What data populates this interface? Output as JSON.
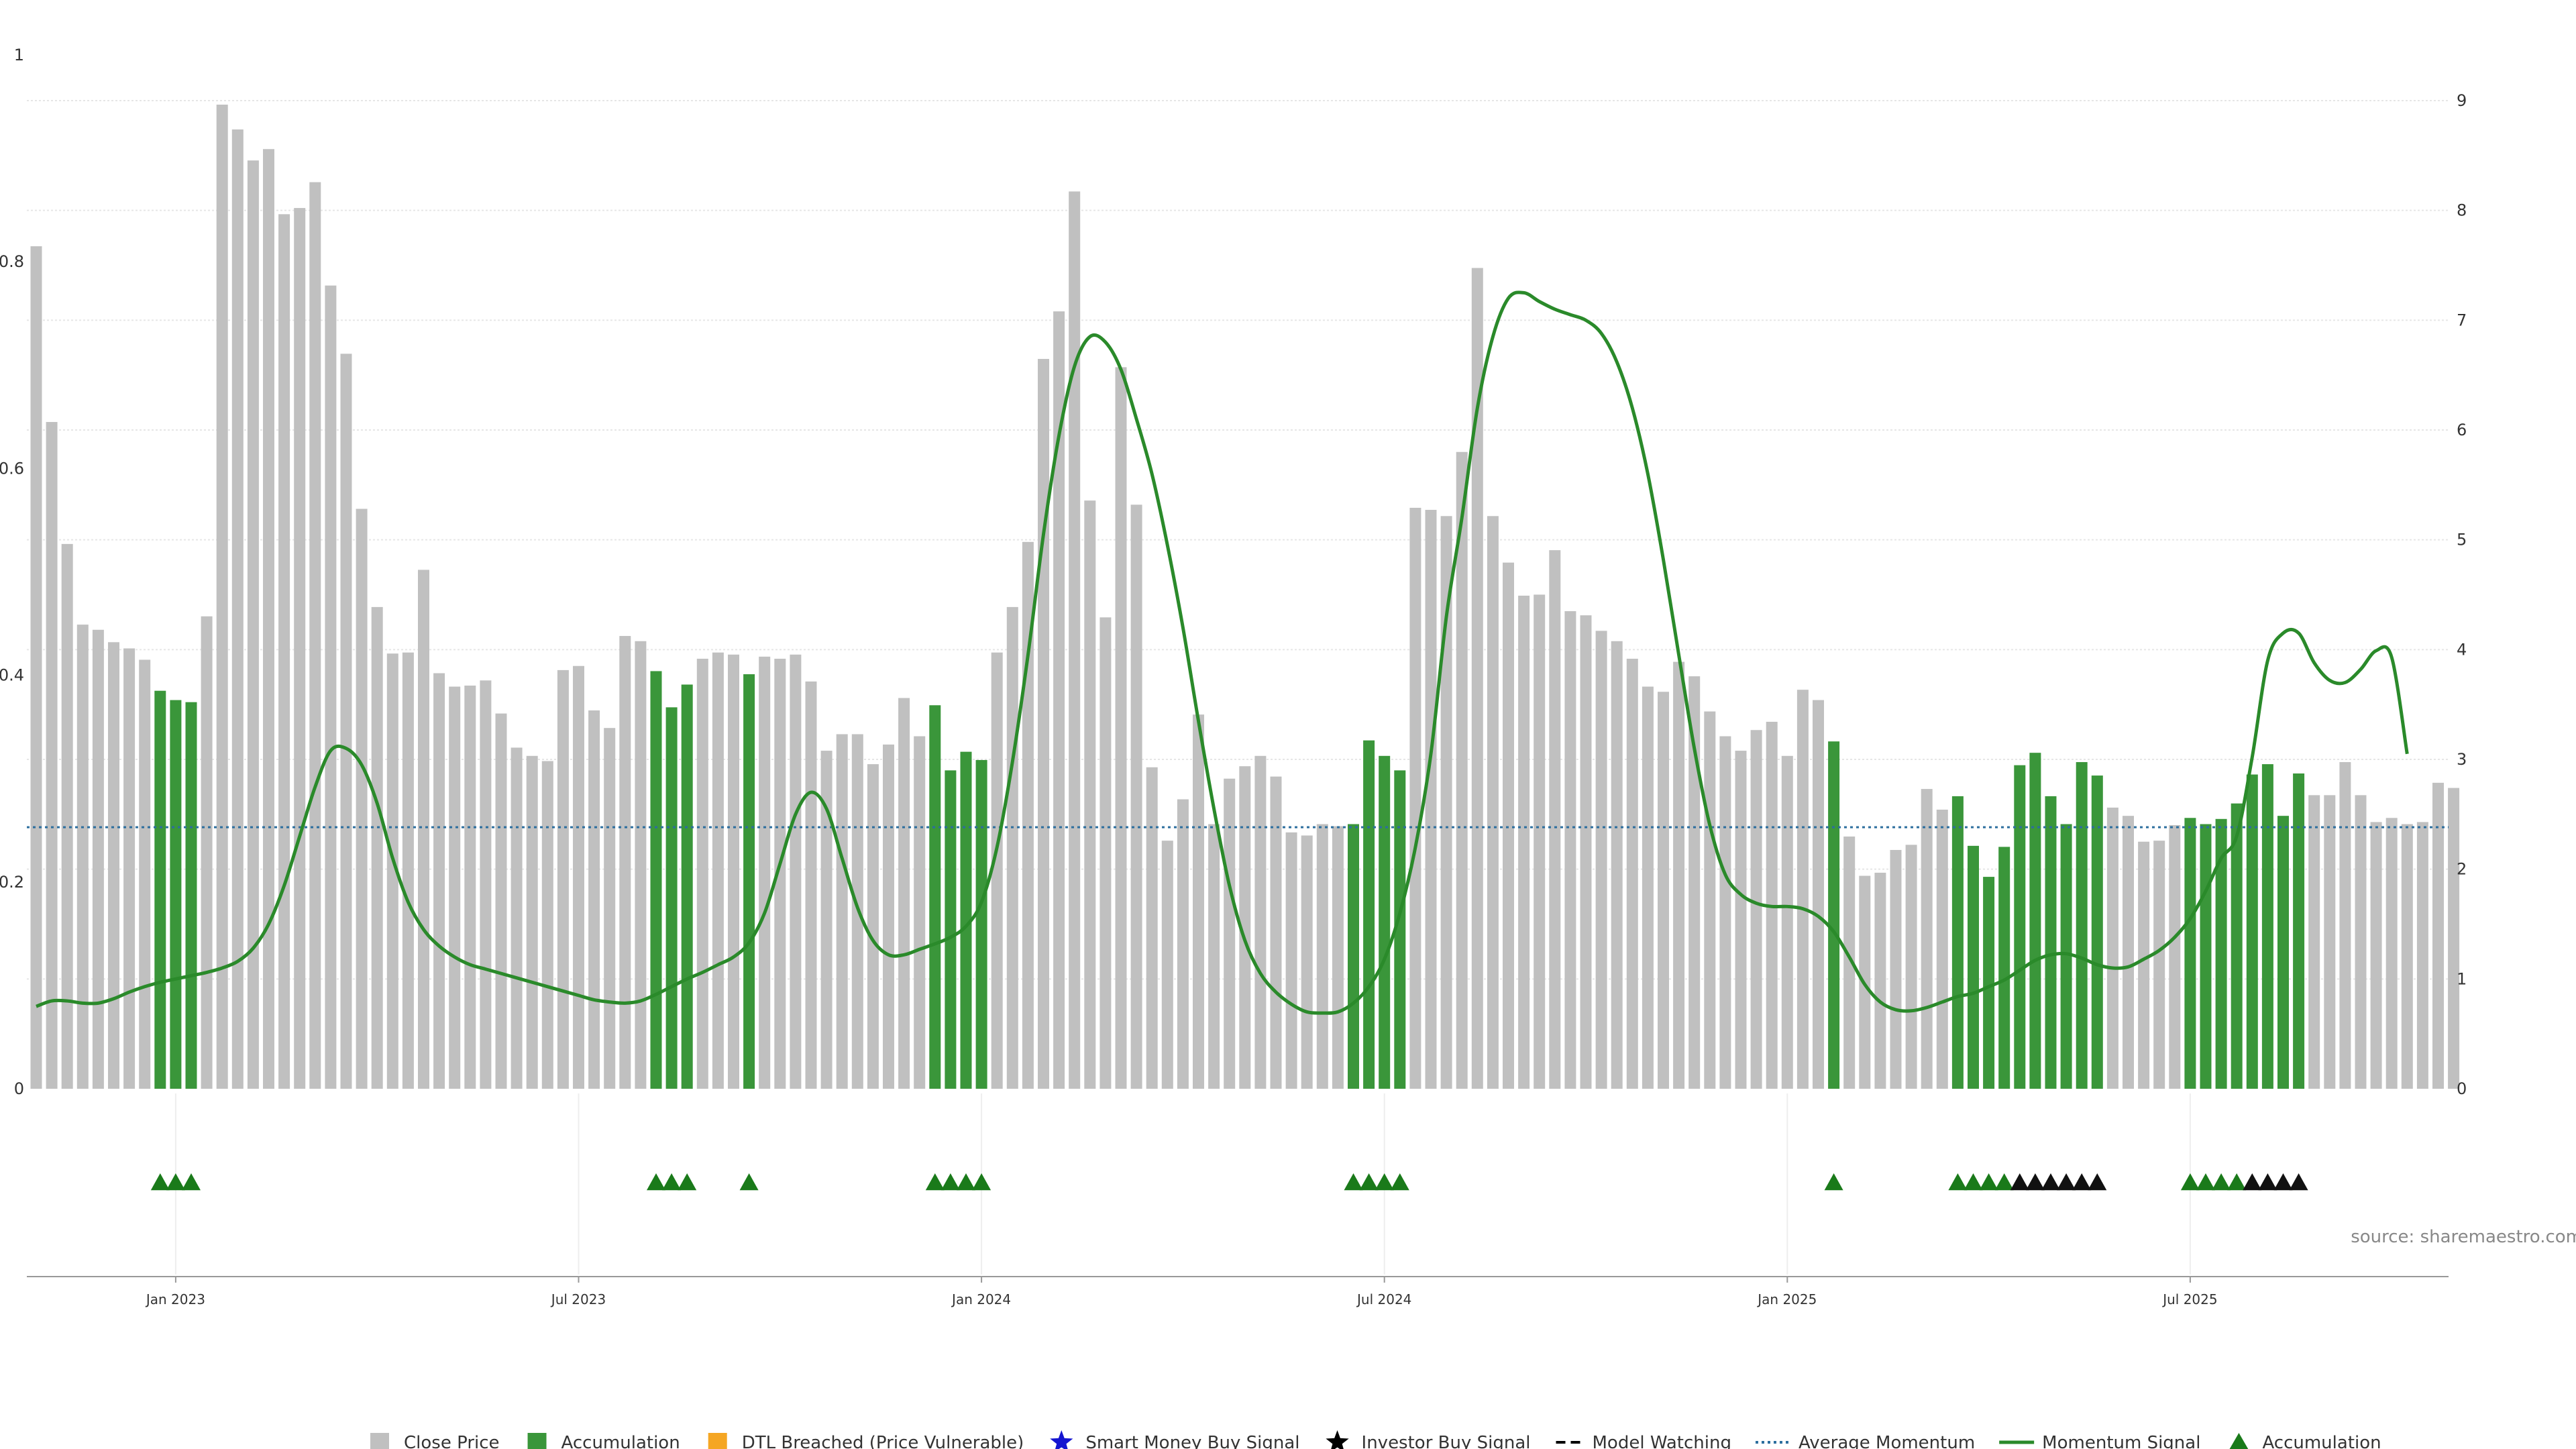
{
  "colors": {
    "close_price": "#c0c0c0",
    "accumulation": "#3a963a",
    "dtl": "#f5a623",
    "smart_money": "#1515d0",
    "investor": "#000000",
    "momentum": "#2a8a2a",
    "average": "#2c6e9e",
    "marker_green": "#1a7a1a",
    "marker_black": "#111111"
  },
  "chart_data": {
    "type": "bar",
    "title": "",
    "source": "source: sharemaestro.com",
    "xlabel": "",
    "ylabel": "",
    "x_tick_labels": [
      "Jan 2023",
      "Jul 2023",
      "Jan 2024",
      "Jul 2024",
      "Jan 2025",
      "Jul 2025"
    ],
    "x_tick_week_index": [
      9,
      35,
      61,
      87,
      113,
      139
    ],
    "y_left": {
      "range": [
        0,
        1
      ],
      "ticks": [
        "0",
        "0.2",
        "0.4",
        "0.6",
        "0.8",
        "1"
      ]
    },
    "y_right": {
      "range": [
        0,
        9
      ],
      "ticks": [
        "0",
        "1",
        "2",
        "3",
        "4",
        "5",
        "6",
        "7",
        "8",
        "9"
      ]
    },
    "average_momentum": 0.253,
    "series": [
      {
        "name": "Close Price",
        "type": "bar",
        "values": [
          0.815,
          0.645,
          0.527,
          0.449,
          0.444,
          0.432,
          0.426,
          0.415,
          0.385,
          0.376,
          0.374,
          0.457,
          0.952,
          0.928,
          0.898,
          0.909,
          0.846,
          0.852,
          0.877,
          0.777,
          0.711,
          0.561,
          0.466,
          0.421,
          0.422,
          0.502,
          0.402,
          0.389,
          0.39,
          0.395,
          0.363,
          0.33,
          0.322,
          0.317,
          0.405,
          0.409,
          0.366,
          0.349,
          0.438,
          0.433,
          0.404,
          0.369,
          0.391,
          0.416,
          0.422,
          0.42,
          0.401,
          0.418,
          0.416,
          0.42,
          0.394,
          0.327,
          0.343,
          0.343,
          0.314,
          0.333,
          0.378,
          0.341,
          0.371,
          0.308,
          0.326,
          0.318,
          0.422,
          0.466,
          0.529,
          0.706,
          0.752,
          0.868,
          0.569,
          0.456,
          0.698,
          0.565,
          0.311,
          0.24,
          0.28,
          0.362,
          0.256,
          0.3,
          0.312,
          0.322,
          0.302,
          0.248,
          0.245,
          0.256,
          0.254,
          0.256,
          0.337,
          0.322,
          0.308,
          0.562,
          0.56,
          0.554,
          0.616,
          0.794,
          0.554,
          0.509,
          0.477,
          0.478,
          0.521,
          0.462,
          0.458,
          0.443,
          0.433,
          0.416,
          0.389,
          0.384,
          0.413,
          0.399,
          0.365,
          0.341,
          0.327,
          0.347,
          0.355,
          0.322,
          0.386,
          0.376,
          0.336,
          0.244,
          0.206,
          0.209,
          0.231,
          0.236,
          0.29,
          0.27,
          0.283,
          0.235,
          0.205,
          0.234,
          0.313,
          0.325,
          0.283,
          0.256,
          0.316,
          0.303,
          0.272,
          0.264,
          0.239,
          0.24,
          0.255,
          0.262,
          0.256,
          0.261,
          0.276,
          0.304,
          0.314,
          0.264,
          0.305,
          0.284,
          0.284,
          0.316,
          0.284,
          0.258,
          0.262,
          0.256,
          0.258,
          0.296,
          0.291
        ]
      },
      {
        "name": "Accumulation",
        "type": "bar_highlight",
        "week_index": [
          8,
          9,
          10,
          40,
          41,
          42,
          46,
          58,
          59,
          60,
          61,
          85,
          86,
          87,
          88,
          116,
          124,
          125,
          126,
          127,
          128,
          129,
          130,
          131,
          132,
          133,
          139,
          140,
          141,
          142,
          143,
          144,
          145,
          146
        ]
      },
      {
        "name": "Momentum Signal",
        "type": "line",
        "axis": "right",
        "values": [
          0.75,
          0.8,
          0.8,
          0.78,
          0.78,
          0.82,
          0.88,
          0.93,
          0.97,
          1.0,
          1.03,
          1.06,
          1.1,
          1.16,
          1.28,
          1.5,
          1.85,
          2.3,
          2.75,
          3.08,
          3.1,
          2.95,
          2.6,
          2.1,
          1.7,
          1.45,
          1.3,
          1.2,
          1.13,
          1.09,
          1.05,
          1.01,
          0.97,
          0.93,
          0.89,
          0.85,
          0.81,
          0.79,
          0.78,
          0.8,
          0.86,
          0.93,
          1.0,
          1.06,
          1.13,
          1.2,
          1.33,
          1.6,
          2.05,
          2.5,
          2.7,
          2.55,
          2.1,
          1.65,
          1.35,
          1.22,
          1.22,
          1.27,
          1.32,
          1.38,
          1.48,
          1.7,
          2.2,
          2.98,
          3.95,
          5.05,
          5.95,
          6.58,
          6.85,
          6.8,
          6.55,
          6.1,
          5.6,
          4.95,
          4.2,
          3.35,
          2.55,
          1.85,
          1.35,
          1.05,
          0.88,
          0.77,
          0.7,
          0.69,
          0.7,
          0.78,
          0.93,
          1.18,
          1.6,
          2.2,
          3.05,
          4.3,
          5.2,
          6.2,
          6.85,
          7.2,
          7.25,
          7.17,
          7.1,
          7.05,
          7.0,
          6.88,
          6.62,
          6.2,
          5.6,
          4.82,
          3.95,
          3.1,
          2.4,
          1.95,
          1.77,
          1.69,
          1.66,
          1.66,
          1.64,
          1.57,
          1.43,
          1.2,
          0.95,
          0.79,
          0.72,
          0.71,
          0.74,
          0.79,
          0.84,
          0.87,
          0.93,
          0.99,
          1.08,
          1.17,
          1.22,
          1.23,
          1.19,
          1.13,
          1.1,
          1.11,
          1.18,
          1.26,
          1.38,
          1.55,
          1.8,
          2.1,
          2.3,
          3.02,
          3.9,
          4.15,
          4.15,
          3.88,
          3.72,
          3.7,
          3.82,
          3.99,
          3.93,
          3.05
        ]
      },
      {
        "name": "Accumulation markers",
        "type": "markers",
        "green_index": [
          8,
          9,
          10,
          40,
          41,
          42,
          46,
          58,
          59,
          60,
          61,
          85,
          86,
          87,
          88,
          116,
          124,
          125,
          126,
          127,
          139,
          140,
          141,
          142
        ],
        "black_index": [
          128,
          129,
          130,
          131,
          132,
          133,
          143,
          144,
          145,
          146
        ]
      }
    ],
    "legend": {
      "placement": "bottom-center",
      "items": [
        {
          "label": "Close Price",
          "symbol": "square",
          "color": "#c0c0c0"
        },
        {
          "label": "Accumulation",
          "symbol": "square",
          "color": "#3a963a"
        },
        {
          "label": "DTL Breached (Price Vulnerable)",
          "symbol": "square",
          "color": "#f5a623"
        },
        {
          "label": "Smart Money Buy Signal",
          "symbol": "star",
          "color": "#1515d0"
        },
        {
          "label": "Investor Buy Signal",
          "symbol": "star",
          "color": "#000000"
        },
        {
          "label": "Model Watching",
          "symbol": "dash",
          "color": "#000000"
        },
        {
          "label": "Average Momentum",
          "symbol": "dot",
          "color": "#2c6e9e"
        },
        {
          "label": "Momentum Signal",
          "symbol": "line",
          "color": "#2a8a2a"
        },
        {
          "label": "Accumulation",
          "symbol": "triangle",
          "color": "#1a7a1a"
        }
      ]
    }
  }
}
